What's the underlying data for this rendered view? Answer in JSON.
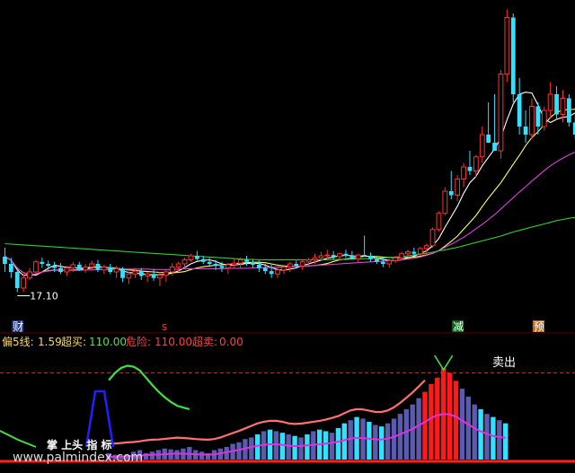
{
  "main_panel": {
    "low_price_label": "17.10",
    "event_markers": [
      {
        "text": "财",
        "bar": 2,
        "bg": "#1e3a8a",
        "fg": "#ffffff"
      },
      {
        "text": "s",
        "bar": 26,
        "bg": "",
        "fg": "#ff3333"
      },
      {
        "text": "减",
        "bar": 73,
        "bg": "#0a6a1a",
        "fg": "#ffffff"
      },
      {
        "text": "预",
        "bar": 86,
        "bg": "#c26a1a",
        "fg": "#ffffff"
      }
    ]
  },
  "indicator_header": {
    "items": [
      {
        "label": "偏5线:",
        "value": "1.59",
        "label_color": "#ffd75a",
        "value_color": "#ffd75a"
      },
      {
        "label": "超买:",
        "value": "110.00",
        "label_color": "#ffd75a",
        "value_color": "#50e050"
      },
      {
        "label": "危险:",
        "value": "110.00",
        "label_color": "#ff4040",
        "value_color": "#ff4040"
      },
      {
        "label": "超卖:",
        "value": "0.00",
        "label_color": "#ff4040",
        "value_color": "#ff4040"
      }
    ]
  },
  "sub_panel": {
    "sell_signal_label": "卖出",
    "overlay_text": "掌 上头 指  标",
    "watermark": "www.palmindex.com"
  },
  "colors": {
    "up": "#ff3030",
    "down": "#33e0ff",
    "ma5": "#ffffff",
    "ma10": "#ffff66",
    "ma30": "#e040e0",
    "ma60": "#30d030",
    "sub_bar_normal": "#5a5ab0",
    "sub_bar_cyan": "#33e0ff",
    "sub_bar_red": "#ff1a1a",
    "sub_line_salmon": "#ff7070",
    "sub_line_green": "#40e040",
    "sub_line_magenta": "#e030e0",
    "sub_spike_blue": "#2020ff",
    "dashed_red": "#d02020"
  },
  "chart_data": [
    {
      "type": "candlestick",
      "y_axis": "price",
      "low_marker": 17.1,
      "ohlc": [
        [
          17.98,
          18.2,
          17.6,
          17.8
        ],
        [
          17.8,
          17.95,
          17.45,
          17.6
        ],
        [
          17.6,
          17.7,
          17.1,
          17.2
        ],
        [
          17.2,
          17.55,
          17.1,
          17.45
        ],
        [
          17.45,
          17.7,
          17.4,
          17.6
        ],
        [
          17.6,
          17.9,
          17.55,
          17.85
        ],
        [
          17.85,
          17.95,
          17.7,
          17.8
        ],
        [
          17.8,
          17.88,
          17.65,
          17.75
        ],
        [
          17.75,
          17.85,
          17.6,
          17.7
        ],
        [
          17.7,
          17.82,
          17.55,
          17.6
        ],
        [
          17.6,
          17.75,
          17.5,
          17.7
        ],
        [
          17.7,
          17.85,
          17.6,
          17.78
        ],
        [
          17.78,
          17.85,
          17.62,
          17.65
        ],
        [
          17.65,
          17.8,
          17.58,
          17.72
        ],
        [
          17.72,
          17.88,
          17.65,
          17.8
        ],
        [
          17.8,
          17.9,
          17.6,
          17.65
        ],
        [
          17.65,
          17.78,
          17.55,
          17.72
        ],
        [
          17.72,
          17.8,
          17.55,
          17.6
        ],
        [
          17.6,
          17.75,
          17.45,
          17.68
        ],
        [
          17.68,
          17.72,
          17.35,
          17.45
        ],
        [
          17.45,
          17.6,
          17.3,
          17.55
        ],
        [
          17.55,
          17.7,
          17.45,
          17.62
        ],
        [
          17.62,
          17.7,
          17.4,
          17.5
        ],
        [
          17.5,
          17.6,
          17.35,
          17.55
        ],
        [
          17.55,
          17.68,
          17.38,
          17.45
        ],
        [
          17.45,
          17.6,
          17.25,
          17.52
        ],
        [
          17.52,
          17.65,
          17.35,
          17.6
        ],
        [
          17.6,
          17.82,
          17.5,
          17.72
        ],
        [
          17.72,
          17.85,
          17.6,
          17.8
        ],
        [
          17.8,
          17.95,
          17.7,
          17.9
        ],
        [
          17.9,
          18.05,
          17.85,
          18.0
        ],
        [
          18.0,
          18.12,
          17.88,
          17.92
        ],
        [
          17.92,
          18.0,
          17.8,
          17.85
        ],
        [
          17.85,
          17.95,
          17.72,
          17.8
        ],
        [
          17.8,
          17.9,
          17.65,
          17.75
        ],
        [
          17.75,
          17.85,
          17.6,
          17.7
        ],
        [
          17.7,
          17.82,
          17.55,
          17.78
        ],
        [
          17.78,
          17.92,
          17.68,
          17.82
        ],
        [
          17.82,
          17.95,
          17.7,
          17.9
        ],
        [
          17.9,
          18.0,
          17.75,
          17.85
        ],
        [
          17.85,
          17.92,
          17.7,
          17.78
        ],
        [
          17.78,
          17.88,
          17.6,
          17.7
        ],
        [
          17.7,
          17.8,
          17.55,
          17.62
        ],
        [
          17.62,
          17.78,
          17.45,
          17.55
        ],
        [
          17.55,
          17.7,
          17.45,
          17.65
        ],
        [
          17.65,
          17.78,
          17.55,
          17.72
        ],
        [
          17.72,
          17.85,
          17.6,
          17.8
        ],
        [
          17.8,
          17.88,
          17.68,
          17.75
        ],
        [
          17.75,
          17.9,
          17.65,
          17.85
        ],
        [
          17.85,
          17.95,
          17.72,
          17.9
        ],
        [
          17.9,
          18.05,
          17.8,
          17.95
        ],
        [
          17.95,
          18.1,
          17.88,
          18.0
        ],
        [
          18.0,
          18.15,
          17.92,
          18.02
        ],
        [
          18.02,
          18.12,
          17.9,
          17.98
        ],
        [
          17.98,
          18.08,
          17.88,
          18.05
        ],
        [
          18.05,
          18.15,
          17.95,
          18.0
        ],
        [
          18.0,
          18.12,
          17.9,
          17.92
        ],
        [
          17.92,
          18.05,
          17.85,
          18.02
        ],
        [
          18.02,
          18.5,
          17.98,
          18.0
        ],
        [
          18.0,
          18.08,
          17.85,
          17.92
        ],
        [
          17.92,
          18.0,
          17.8,
          17.85
        ],
        [
          17.85,
          17.95,
          17.72,
          17.8
        ],
        [
          17.8,
          17.92,
          17.7,
          17.88
        ],
        [
          17.88,
          18.0,
          17.82,
          17.95
        ],
        [
          17.95,
          18.1,
          17.9,
          18.05
        ],
        [
          18.05,
          18.15,
          17.98,
          18.1
        ],
        [
          18.1,
          18.2,
          18.0,
          18.05
        ],
        [
          18.05,
          18.22,
          18.0,
          18.18
        ],
        [
          18.18,
          18.3,
          18.05,
          18.25
        ],
        [
          18.25,
          18.7,
          18.2,
          18.65
        ],
        [
          18.65,
          19.1,
          18.6,
          19.05
        ],
        [
          19.05,
          19.7,
          19.0,
          19.6
        ],
        [
          19.6,
          20.1,
          19.4,
          19.5
        ],
        [
          19.5,
          20.0,
          19.35,
          19.9
        ],
        [
          19.9,
          20.3,
          19.7,
          20.2
        ],
        [
          20.2,
          20.6,
          20.0,
          20.1
        ],
        [
          20.1,
          20.5,
          19.95,
          20.45
        ],
        [
          20.45,
          21.2,
          20.3,
          21.0
        ],
        [
          21.0,
          21.8,
          20.8,
          20.8
        ],
        [
          20.8,
          22.0,
          20.6,
          20.6
        ],
        [
          20.6,
          22.6,
          20.4,
          22.5
        ],
        [
          22.5,
          24.1,
          22.3,
          23.9
        ],
        [
          23.9,
          24.0,
          21.8,
          22.0
        ],
        [
          22.0,
          22.4,
          21.0,
          21.2
        ],
        [
          21.2,
          21.6,
          20.8,
          21.0
        ],
        [
          21.0,
          21.9,
          20.9,
          21.7
        ],
        [
          21.7,
          21.8,
          21.0,
          21.2
        ],
        [
          21.2,
          21.7,
          21.1,
          21.6
        ],
        [
          21.6,
          22.3,
          21.4,
          22.0
        ],
        [
          22.0,
          22.2,
          21.4,
          21.5
        ],
        [
          21.5,
          22.1,
          21.3,
          21.9
        ],
        [
          21.9,
          22.0,
          21.2,
          21.3
        ],
        [
          21.3,
          21.5,
          20.9,
          21.0
        ]
      ]
    },
    {
      "type": "line",
      "y_axis": "price",
      "series": [
        {
          "name": "MA5",
          "values": [
            17.98,
            17.89,
            17.65,
            17.51,
            17.54,
            17.52,
            17.6,
            17.69,
            17.77,
            17.74,
            17.71,
            17.71,
            17.69,
            17.69,
            17.73,
            17.72,
            17.72,
            17.7,
            17.69,
            17.62,
            17.59,
            17.57,
            17.56,
            17.53,
            17.53,
            17.53,
            17.54,
            17.57,
            17.63,
            17.71,
            17.8,
            17.86,
            17.89,
            17.9,
            17.86,
            17.8,
            17.77,
            17.77,
            17.79,
            17.81,
            17.82,
            17.81,
            17.77,
            17.71,
            17.66,
            17.64,
            17.67,
            17.7,
            17.76,
            17.8,
            17.85,
            17.89,
            17.94,
            17.97,
            18,
            18.01,
            18,
            17.99,
            18,
            17.98,
            17.94,
            17.91,
            17.89,
            17.88,
            17.9,
            17.95,
            17.99,
            18.06,
            18.12,
            18.25,
            18.43,
            18.71,
            18.97,
            19.23,
            19.55,
            19.81,
            19.97,
            20.23,
            20.44,
            20.65,
            20.93,
            21.37,
            21.76,
            22,
            22.05,
            22.03,
            21.73,
            21.39,
            21.3,
            21.38,
            21.43,
            21.45,
            21.54
          ]
        },
        {
          "name": "MA10",
          "values": [
            17.98,
            17.89,
            17.69,
            17.58,
            17.54,
            17.55,
            17.6,
            17.63,
            17.65,
            17.64,
            17.64,
            17.65,
            17.66,
            17.67,
            17.7,
            17.73,
            17.72,
            17.7,
            17.69,
            17.67,
            17.65,
            17.64,
            17.62,
            17.61,
            17.6,
            17.59,
            17.58,
            17.58,
            17.59,
            17.61,
            17.66,
            17.7,
            17.73,
            17.75,
            17.77,
            17.78,
            17.79,
            17.8,
            17.82,
            17.83,
            17.84,
            17.84,
            17.83,
            17.8,
            17.77,
            17.75,
            17.74,
            17.74,
            17.74,
            17.75,
            17.76,
            17.78,
            17.81,
            17.86,
            17.9,
            17.92,
            17.94,
            17.97,
            17.99,
            17.99,
            17.98,
            17.97,
            17.96,
            17.95,
            17.95,
            17.96,
            17.97,
            17.99,
            18.02,
            18.06,
            18.13,
            18.24,
            18.36,
            18.49,
            18.66,
            18.83,
            19,
            19.22,
            19.43,
            19.62,
            19.81,
            20.04,
            20.27,
            20.49,
            20.73,
            20.93,
            21.07,
            21.25,
            21.43,
            21.55,
            21.61,
            21.62,
            21.63
          ]
        },
        {
          "name": "MA30",
          "values": [
            17.98,
            17.89,
            17.69,
            17.58,
            17.54,
            17.55,
            17.6,
            17.62,
            17.64,
            17.64,
            17.64,
            17.64,
            17.64,
            17.65,
            17.65,
            17.66,
            17.66,
            17.66,
            17.66,
            17.67,
            17.67,
            17.67,
            17.67,
            17.67,
            17.66,
            17.66,
            17.66,
            17.66,
            17.67,
            17.68,
            17.68,
            17.68,
            17.68,
            17.68,
            17.68,
            17.68,
            17.69,
            17.69,
            17.69,
            17.69,
            17.7,
            17.7,
            17.71,
            17.71,
            17.72,
            17.72,
            17.73,
            17.74,
            17.74,
            17.75,
            17.76,
            17.77,
            17.78,
            17.79,
            17.8,
            17.81,
            17.82,
            17.83,
            17.84,
            17.85,
            17.86,
            17.87,
            17.88,
            17.89,
            17.9,
            17.92,
            17.94,
            17.97,
            18.01,
            18.06,
            18.13,
            18.21,
            18.29,
            18.37,
            18.46,
            18.56,
            18.67,
            18.78,
            18.9,
            19.02,
            19.16,
            19.3,
            19.44,
            19.58,
            19.71,
            19.85,
            19.98,
            20.11,
            20.23,
            20.33,
            20.42,
            20.5,
            20.57
          ]
        },
        {
          "name": "MA60",
          "values": [
            18.3,
            18.29,
            18.28,
            18.27,
            18.26,
            18.25,
            18.24,
            18.23,
            18.22,
            18.21,
            18.2,
            18.19,
            18.18,
            18.17,
            18.16,
            18.15,
            18.14,
            18.13,
            18.12,
            18.11,
            18.1,
            18.09,
            18.08,
            18.07,
            18.06,
            18.05,
            18.04,
            18.03,
            18.02,
            18.01,
            18,
            17.99,
            17.98,
            17.97,
            17.96,
            17.95,
            17.94,
            17.93,
            17.92,
            17.91,
            17.91,
            17.9,
            17.9,
            17.9,
            17.9,
            17.9,
            17.9,
            17.9,
            17.9,
            17.9,
            17.9,
            17.9,
            17.9,
            17.91,
            17.91,
            17.91,
            17.92,
            17.92,
            17.93,
            17.93,
            17.94,
            17.95,
            17.96,
            17.97,
            17.98,
            18,
            18.02,
            18.04,
            18.06,
            18.09,
            18.12,
            18.15,
            18.18,
            18.21,
            18.25,
            18.29,
            18.33,
            18.37,
            18.41,
            18.45,
            18.49,
            18.54,
            18.59,
            18.63,
            18.67,
            18.71,
            18.75,
            18.79,
            18.83,
            18.87,
            18.9,
            18.93,
            18.95
          ]
        }
      ]
    },
    {
      "type": "bar",
      "y_axis": "indicator",
      "ylim": [
        0,
        130
      ],
      "overbought_line": 110,
      "x_start": 16,
      "values": [
        8,
        6,
        5,
        6,
        10,
        12,
        8,
        10,
        12,
        14,
        13,
        12,
        14,
        16,
        12,
        10,
        8,
        12,
        14,
        16,
        20,
        22,
        26,
        28,
        32,
        36,
        38,
        36,
        34,
        32,
        30,
        28,
        32,
        36,
        38,
        36,
        34,
        40,
        46,
        50,
        54,
        52,
        48,
        44,
        42,
        46,
        52,
        58,
        64,
        70,
        78,
        86,
        96,
        104,
        116,
        110,
        100,
        90,
        80,
        70,
        64,
        58,
        54,
        50,
        46
      ],
      "colors": [
        "n",
        "n",
        "n",
        "n",
        "n",
        "n",
        "n",
        "n",
        "n",
        "n",
        "n",
        "n",
        "n",
        "n",
        "n",
        "n",
        "n",
        "n",
        "n",
        "n",
        "n",
        "n",
        "n",
        "n",
        "c",
        "n",
        "c",
        "n",
        "c",
        "n",
        "c",
        "n",
        "c",
        "n",
        "c",
        "c",
        "n",
        "c",
        "c",
        "n",
        "c",
        "n",
        "c",
        "n",
        "c",
        "n",
        "n",
        "n",
        "n",
        "n",
        "n",
        "r",
        "r",
        "r",
        "r",
        "r",
        "r",
        "n",
        "n",
        "n",
        "c",
        "n",
        "c",
        "n",
        "c"
      ]
    }
  ]
}
